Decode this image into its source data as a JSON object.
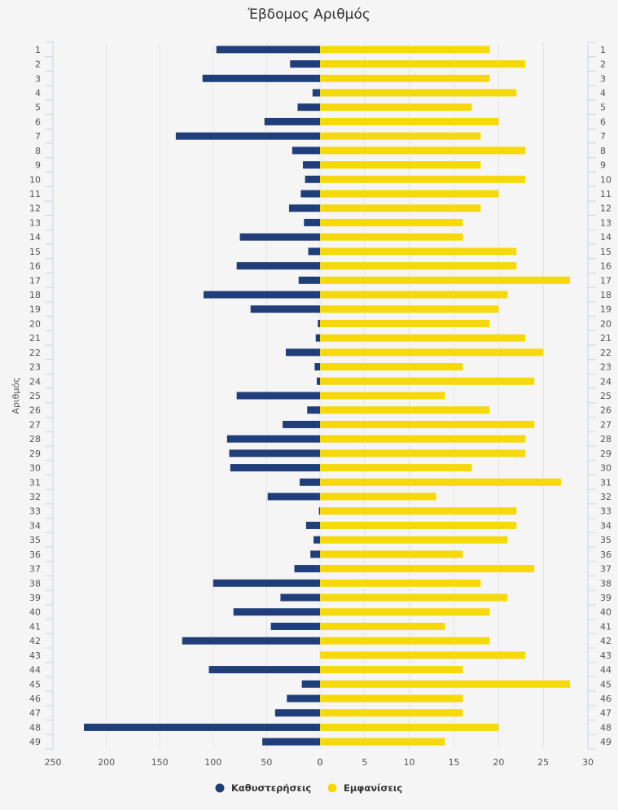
{
  "chart_data": {
    "type": "bar",
    "orientation": "horizontal",
    "title": "Έβδομος Αριθμός",
    "ylabel": "Αριθμός",
    "categories": [
      "1",
      "2",
      "3",
      "4",
      "5",
      "6",
      "7",
      "8",
      "9",
      "10",
      "11",
      "12",
      "13",
      "14",
      "15",
      "16",
      "17",
      "18",
      "19",
      "20",
      "21",
      "22",
      "23",
      "24",
      "25",
      "26",
      "27",
      "28",
      "29",
      "30",
      "31",
      "32",
      "33",
      "34",
      "35",
      "36",
      "37",
      "38",
      "39",
      "40",
      "41",
      "42",
      "43",
      "44",
      "45",
      "46",
      "47",
      "48",
      "49"
    ],
    "left_axis": {
      "range": [
        250,
        0
      ],
      "ticks": [
        "250",
        "200",
        "150",
        "100",
        "50",
        "0"
      ]
    },
    "right_axis": {
      "range": [
        0,
        30
      ],
      "ticks": [
        "0",
        "5",
        "10",
        "15",
        "20",
        "25",
        "30"
      ]
    },
    "series": [
      {
        "name": "Καθυστερήσεις",
        "color": "#1f3e7a",
        "axis": "left",
        "values": [
          97,
          28,
          110,
          7,
          21,
          52,
          135,
          26,
          16,
          14,
          18,
          29,
          15,
          75,
          11,
          78,
          20,
          109,
          65,
          2,
          4,
          32,
          5,
          3,
          78,
          12,
          35,
          87,
          85,
          84,
          19,
          49,
          1,
          13,
          6,
          9,
          24,
          100,
          37,
          81,
          46,
          129,
          0,
          104,
          17,
          31,
          42,
          221,
          54
        ]
      },
      {
        "name": "Εμφανίσεις",
        "color": "#f5d90a",
        "axis": "right",
        "values": [
          19,
          23,
          19,
          22,
          17,
          20,
          18,
          23,
          18,
          23,
          20,
          18,
          16,
          16,
          22,
          22,
          28,
          21,
          20,
          19,
          23,
          25,
          16,
          24,
          14,
          19,
          24,
          23,
          23,
          17,
          27,
          13,
          22,
          22,
          21,
          16,
          24,
          18,
          21,
          19,
          14,
          19,
          23,
          16,
          28,
          16,
          16,
          20,
          14
        ]
      }
    ],
    "legend": {
      "position": "bottom-center",
      "entries": [
        "Καθυστερήσεις",
        "Εμφανίσεις"
      ]
    },
    "grid": true
  }
}
